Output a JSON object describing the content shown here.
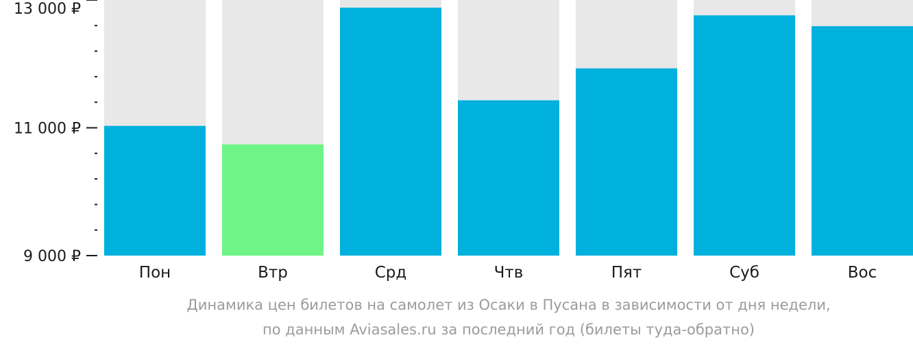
{
  "chart_data": {
    "type": "bar",
    "categories": [
      "Пон",
      "Втр",
      "Срд",
      "Чтв",
      "Пят",
      "Суб",
      "Вос"
    ],
    "values": [
      11030,
      10740,
      12880,
      11430,
      11930,
      12760,
      12590
    ],
    "ylim": [
      9000,
      13000
    ],
    "y_ticks": [
      {
        "value": 13000,
        "label": "13 000 ₽"
      },
      {
        "value": 11000,
        "label": "11 000 ₽"
      },
      {
        "value": 9000,
        "label": "9 000 ₽"
      }
    ],
    "minor_tick_step": 400,
    "highlight_index": 1,
    "colors": {
      "bar": "#00b0dd",
      "highlight": "#6ef585",
      "background_bar": "#e8e8e8",
      "axis": "#1a1a1a",
      "caption": "#9b9b9b"
    },
    "caption": [
      "Динамика цен билетов на самолет из Осаки в Пусана в зависимости от дня недели,",
      "по данным Aviasales.ru за последний год (билеты туда-обратно)"
    ]
  }
}
